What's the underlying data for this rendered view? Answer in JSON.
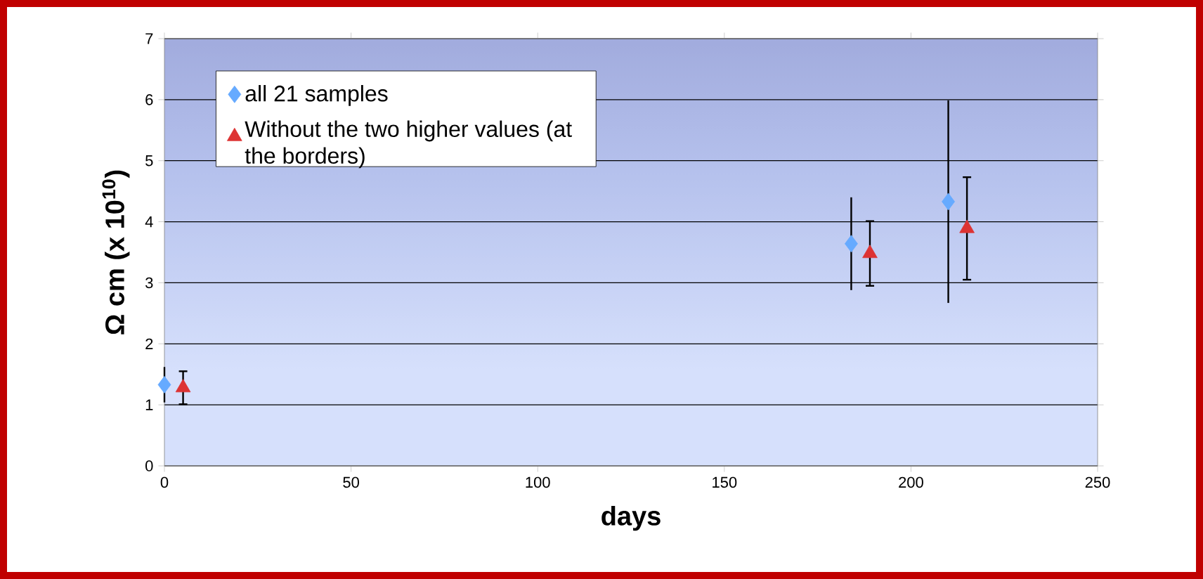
{
  "chart_data": {
    "type": "scatter",
    "xlabel": "days",
    "ylabel": "Ω cm (x 10$^{10}$)",
    "xlim": [
      0,
      250
    ],
    "xticks": [
      0,
      50,
      100,
      150,
      200,
      250
    ],
    "ylim": [
      0,
      7
    ],
    "yticks": [
      0,
      1,
      2,
      3,
      4,
      5,
      6,
      7
    ],
    "grid": "y",
    "legend": "top left",
    "series": [
      {
        "name": "all 21 samples",
        "color": "#66aaff",
        "marker": "diamond",
        "x": [
          0,
          184,
          210
        ],
        "values": [
          1.33,
          3.64,
          4.33
        ],
        "errors": [
          0.29,
          0.76,
          1.66
        ]
      },
      {
        "name": "Without the two higher values (at the borders)",
        "color": "#dd3333",
        "marker": "triangle",
        "x": [
          5,
          189,
          215
        ],
        "values": [
          1.28,
          3.48,
          3.89
        ],
        "errors": [
          0.27,
          0.53,
          0.84
        ]
      }
    ]
  }
}
